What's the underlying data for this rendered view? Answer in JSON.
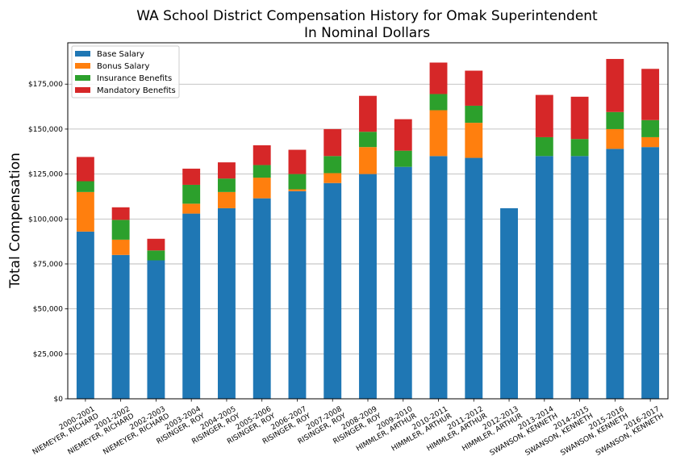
{
  "chart_data": {
    "type": "bar",
    "stacked": true,
    "title": "WA School District Compensation History for Omak Superintendent",
    "subtitle": "In Nominal Dollars",
    "xlabel": "",
    "ylabel": "Total Compensation",
    "ylim": [
      0,
      198000
    ],
    "yticks": [
      0,
      25000,
      50000,
      75000,
      100000,
      125000,
      150000,
      175000
    ],
    "ytick_labels": [
      "$0",
      "$25,000",
      "$50,000",
      "$75,000",
      "$100,000",
      "$125,000",
      "$150,000",
      "$175,000"
    ],
    "grid": "horizontal",
    "legend_position": "top-left",
    "categories": [
      [
        "2000-2001",
        "NIEMEYER, RICHARD"
      ],
      [
        "2001-2002",
        "NIEMEYER, RICHARD"
      ],
      [
        "2002-2003",
        "NIEMEYER, RICHARD"
      ],
      [
        "2003-2004",
        "RISINGER, ROY"
      ],
      [
        "2004-2005",
        "RISINGER, ROY"
      ],
      [
        "2005-2006",
        "RISINGER, ROY"
      ],
      [
        "2006-2007",
        "RISINGER, ROY"
      ],
      [
        "2007-2008",
        "RISINGER, ROY"
      ],
      [
        "2008-2009",
        "RISINGER, ROY"
      ],
      [
        "2009-2010",
        "HIMMLER, ARTHUR"
      ],
      [
        "2010-2011",
        "HIMMLER, ARTHUR"
      ],
      [
        "2011-2012",
        "HIMMLER, ARTHUR"
      ],
      [
        "2012-2013",
        "HIMMLER, ARTHUR"
      ],
      [
        "2013-2014",
        "SWANSON, KENNETH"
      ],
      [
        "2014-2015",
        "SWANSON, KENNETH"
      ],
      [
        "2015-2016",
        "SWANSON, KENNETH"
      ],
      [
        "2016-2017",
        "SWANSON, KENNETH"
      ]
    ],
    "series": [
      {
        "name": "Base Salary",
        "color": "#1f77b4",
        "values": [
          93000,
          80000,
          77000,
          103000,
          106000,
          111500,
          115500,
          120000,
          125000,
          129000,
          135000,
          134000,
          106000,
          135000,
          135000,
          139000,
          140000
        ]
      },
      {
        "name": "Bonus Salary",
        "color": "#ff7f0e",
        "values": [
          22000,
          8500,
          0,
          5500,
          9000,
          11500,
          1000,
          5500,
          15000,
          0,
          25500,
          19500,
          0,
          0,
          0,
          11000,
          5500
        ]
      },
      {
        "name": "Insurance Benefits",
        "color": "#2ca02c",
        "values": [
          6000,
          11000,
          5500,
          10500,
          7500,
          7000,
          8500,
          9500,
          8500,
          9000,
          9000,
          9500,
          0,
          10500,
          9500,
          9500,
          9500
        ]
      },
      {
        "name": "Mandatory Benefits",
        "color": "#d62728",
        "values": [
          13500,
          7000,
          6500,
          9000,
          9000,
          11000,
          13500,
          15000,
          20000,
          17500,
          17500,
          19500,
          0,
          23500,
          23500,
          29500,
          28500
        ]
      }
    ]
  }
}
